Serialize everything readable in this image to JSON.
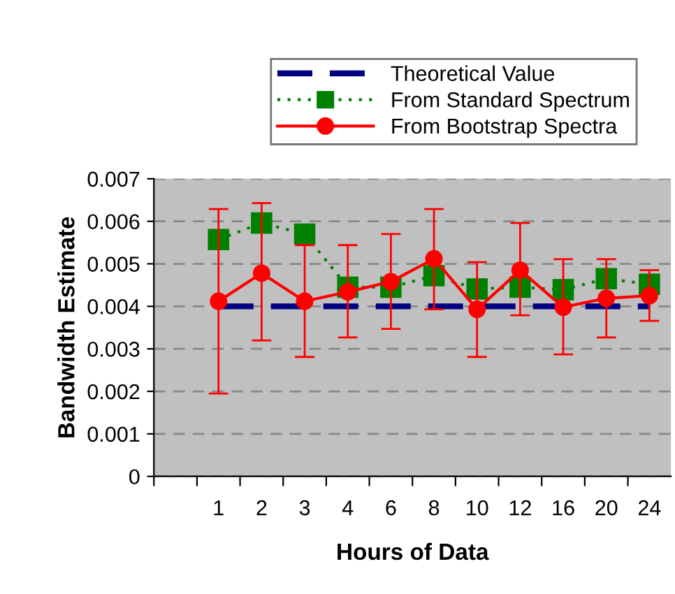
{
  "chart_data": {
    "type": "line",
    "xlabel": "Hours of Data",
    "ylabel": "Bandwidth Estimate",
    "categories": [
      null,
      "1",
      "2",
      "3",
      "4",
      "6",
      "8",
      "10",
      "12",
      "16",
      "20",
      "24"
    ],
    "series": [
      {
        "name": "Theoretical Value",
        "color": "#000080",
        "line_style": "dashed",
        "marker": "none",
        "values": [
          null,
          0.004,
          0.004,
          0.004,
          0.004,
          0.004,
          0.004,
          0.004,
          0.004,
          0.004,
          0.004,
          0.004
        ]
      },
      {
        "name": "From Standard Spectrum",
        "color": "#008000",
        "line_style": "dotted",
        "marker": "square",
        "values": [
          null,
          0.00557,
          0.00596,
          0.0057,
          0.00445,
          0.00445,
          0.00472,
          0.00441,
          0.00445,
          0.00439,
          0.00465,
          0.00452
        ]
      },
      {
        "name": "From Bootstrap Spectra",
        "color": "#ff0000",
        "line_style": "solid",
        "marker": "circle",
        "values": [
          null,
          0.00412,
          0.00478,
          0.00412,
          0.00434,
          0.00458,
          0.00512,
          0.00393,
          0.00485,
          0.00398,
          0.00419,
          0.00425
        ],
        "errors": [
          null,
          [
            0.00195,
            0.00629
          ],
          [
            0.0032,
            0.00643
          ],
          [
            0.00281,
            0.00544
          ],
          [
            0.00327,
            0.00544
          ],
          [
            0.00347,
            0.0057
          ],
          [
            0.00393,
            0.00629
          ],
          [
            0.00281,
            0.00504
          ],
          [
            0.00379,
            0.00596
          ],
          [
            0.00287,
            0.00511
          ],
          [
            0.00327,
            0.00511
          ],
          [
            0.00366,
            0.00485
          ]
        ]
      }
    ],
    "ylim": [
      0,
      0.007
    ],
    "yticks": [
      0,
      0.001,
      0.002,
      0.003,
      0.004,
      0.005,
      0.006,
      0.007
    ],
    "grid": "y",
    "legend": "top"
  }
}
